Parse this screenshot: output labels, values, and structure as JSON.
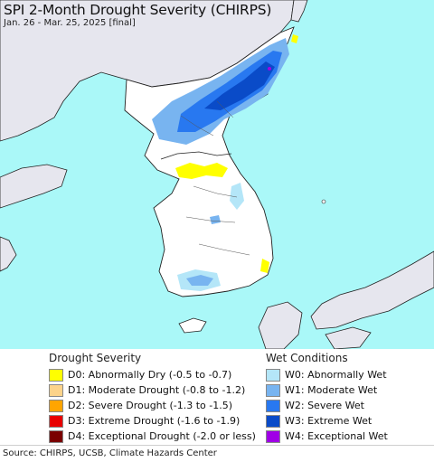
{
  "map": {
    "title": "SPI 2-Month Drought Severity (CHIRPS)",
    "subtitle": "Jan. 26 - Mar. 25, 2025 [final]"
  },
  "colors": {
    "water": "#aaf8f8",
    "land_outside": "#e6e6ee",
    "land_region": "#ffffff",
    "border": "#222222",
    "d0": "#ffff00",
    "d1": "#fcd38a",
    "d2": "#ffa500",
    "d3": "#e80000",
    "d4": "#7a0000",
    "w0": "#b4e6f8",
    "w1": "#78b4f0",
    "w2": "#2878f0",
    "w3": "#0a4bc8",
    "w4": "#a000e6"
  },
  "legend": {
    "drought_heading": "Drought Severity",
    "drought_items": [
      {
        "code": "d0",
        "label": "D0: Abnormally Dry (-0.5 to -0.7)",
        "color": "#ffff00"
      },
      {
        "code": "d1",
        "label": "D1: Moderate Drought (-0.8 to -1.2)",
        "color": "#fcd38a"
      },
      {
        "code": "d2",
        "label": "D2: Severe Drought (-1.3 to -1.5)",
        "color": "#ffa500"
      },
      {
        "code": "d3",
        "label": "D3: Extreme Drought (-1.6 to -1.9)",
        "color": "#e80000"
      },
      {
        "code": "d4",
        "label": "D4: Exceptional Drought (-2.0 or less)",
        "color": "#7a0000"
      }
    ],
    "wet_heading": "Wet Conditions",
    "wet_items": [
      {
        "code": "w0",
        "label": "W0: Abnormally Wet",
        "color": "#b4e6f8"
      },
      {
        "code": "w1",
        "label": "W1: Moderate Wet",
        "color": "#78b4f0"
      },
      {
        "code": "w2",
        "label": "W2: Severe Wet",
        "color": "#2878f0"
      },
      {
        "code": "w3",
        "label": "W3: Extreme Wet",
        "color": "#0a4bc8"
      },
      {
        "code": "w4",
        "label": "W4: Exceptional Wet",
        "color": "#a000e6"
      }
    ]
  },
  "footer": {
    "source": "Source: CHIRPS, UCSB, Climate Hazards Center"
  }
}
